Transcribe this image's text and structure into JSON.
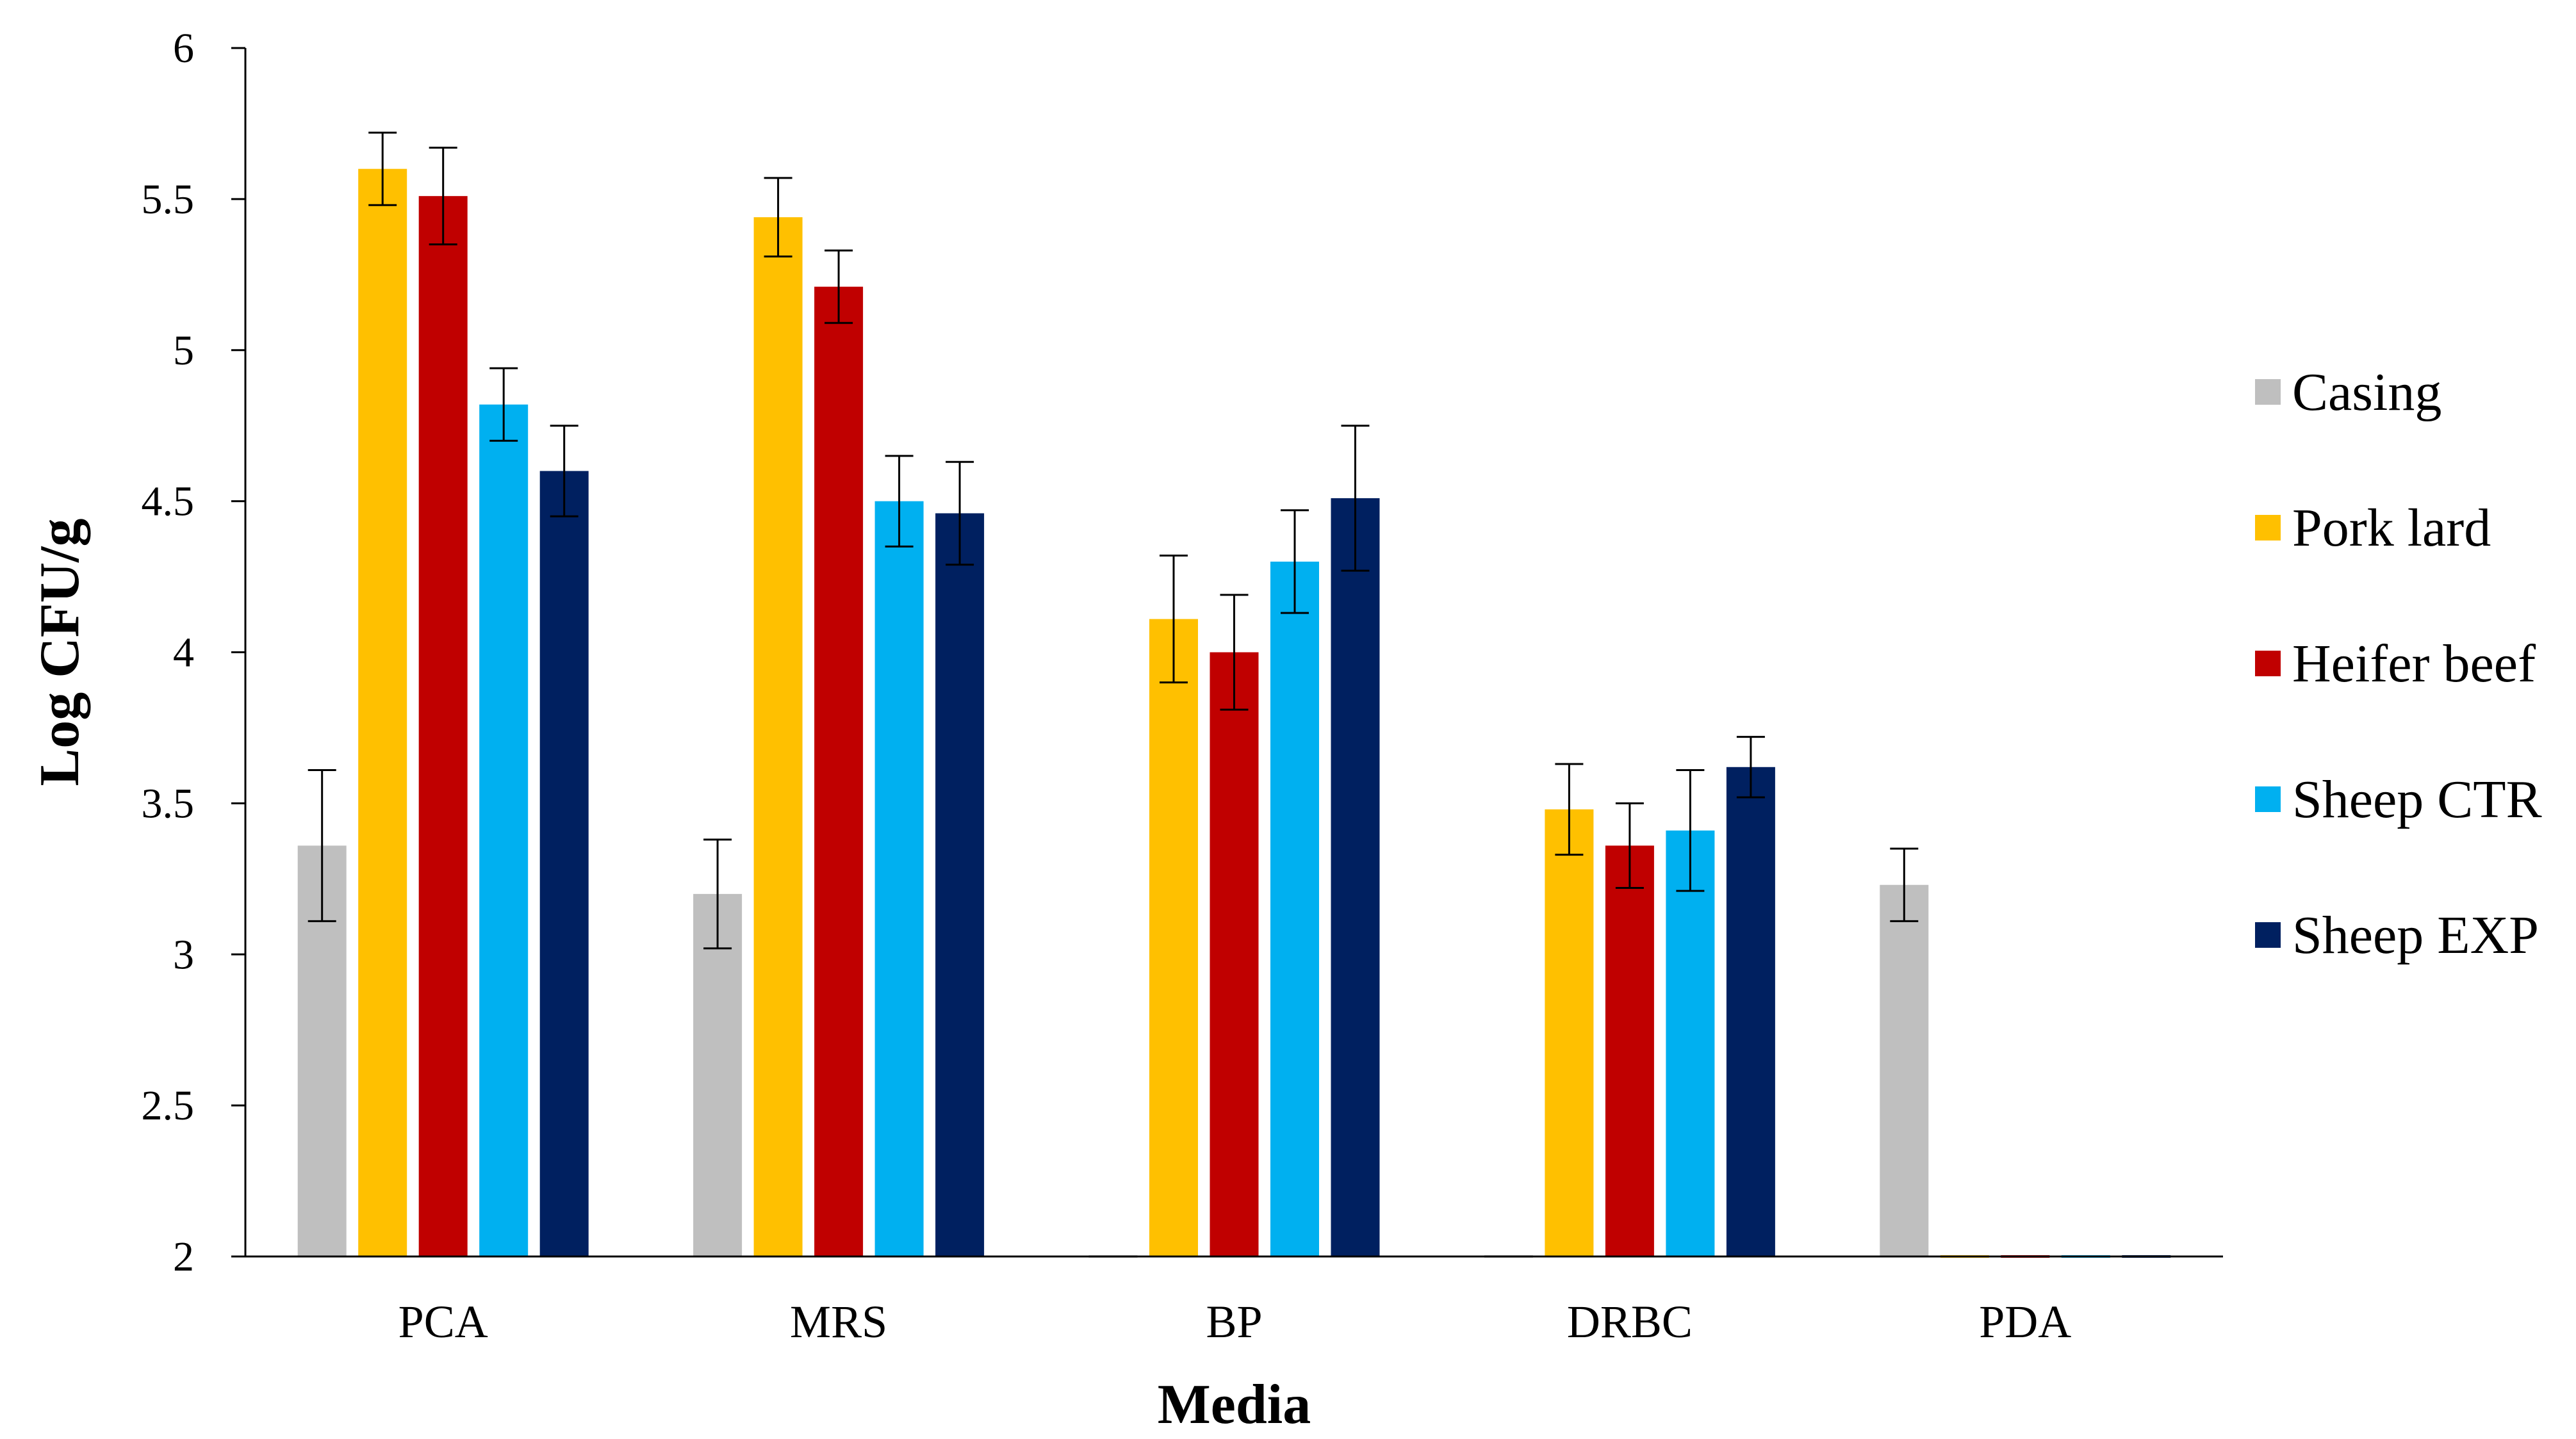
{
  "chart_data": {
    "type": "bar",
    "title": "",
    "xlabel": "Media",
    "ylabel": "Log CFU/g",
    "ylim": [
      2,
      6
    ],
    "yticks": [
      "2",
      "2.5",
      "3",
      "3.5",
      "4",
      "4.5",
      "5",
      "5.5",
      "6"
    ],
    "grid": false,
    "legend_position": "right",
    "categories": [
      "PCA",
      "MRS",
      "BP",
      "DRBC",
      "PDA"
    ],
    "series": [
      {
        "name": "Casing",
        "color": "#BFBFBF",
        "values": [
          3.36,
          3.2,
          2.0,
          2.0,
          3.23
        ],
        "errors": [
          0.25,
          0.18,
          null,
          null,
          0.12
        ]
      },
      {
        "name": "Pork lard",
        "color": "#FFC000",
        "values": [
          5.6,
          5.44,
          4.11,
          3.48,
          2.0
        ],
        "errors": [
          0.12,
          0.13,
          0.21,
          0.15,
          null
        ]
      },
      {
        "name": "Heifer beef",
        "color": "#C00000",
        "values": [
          5.51,
          5.21,
          4.0,
          3.36,
          2.0
        ],
        "errors": [
          0.16,
          0.12,
          0.19,
          0.14,
          null
        ]
      },
      {
        "name": "Sheep CTR",
        "color": "#00B0F0",
        "values": [
          4.82,
          4.5,
          4.3,
          3.41,
          2.0
        ],
        "errors": [
          0.12,
          0.15,
          0.17,
          0.2,
          null
        ]
      },
      {
        "name": "Sheep EXP",
        "color": "#002060",
        "values": [
          4.6,
          4.46,
          4.51,
          3.62,
          2.0
        ],
        "errors": [
          0.15,
          0.17,
          0.24,
          0.1,
          null
        ]
      }
    ]
  }
}
